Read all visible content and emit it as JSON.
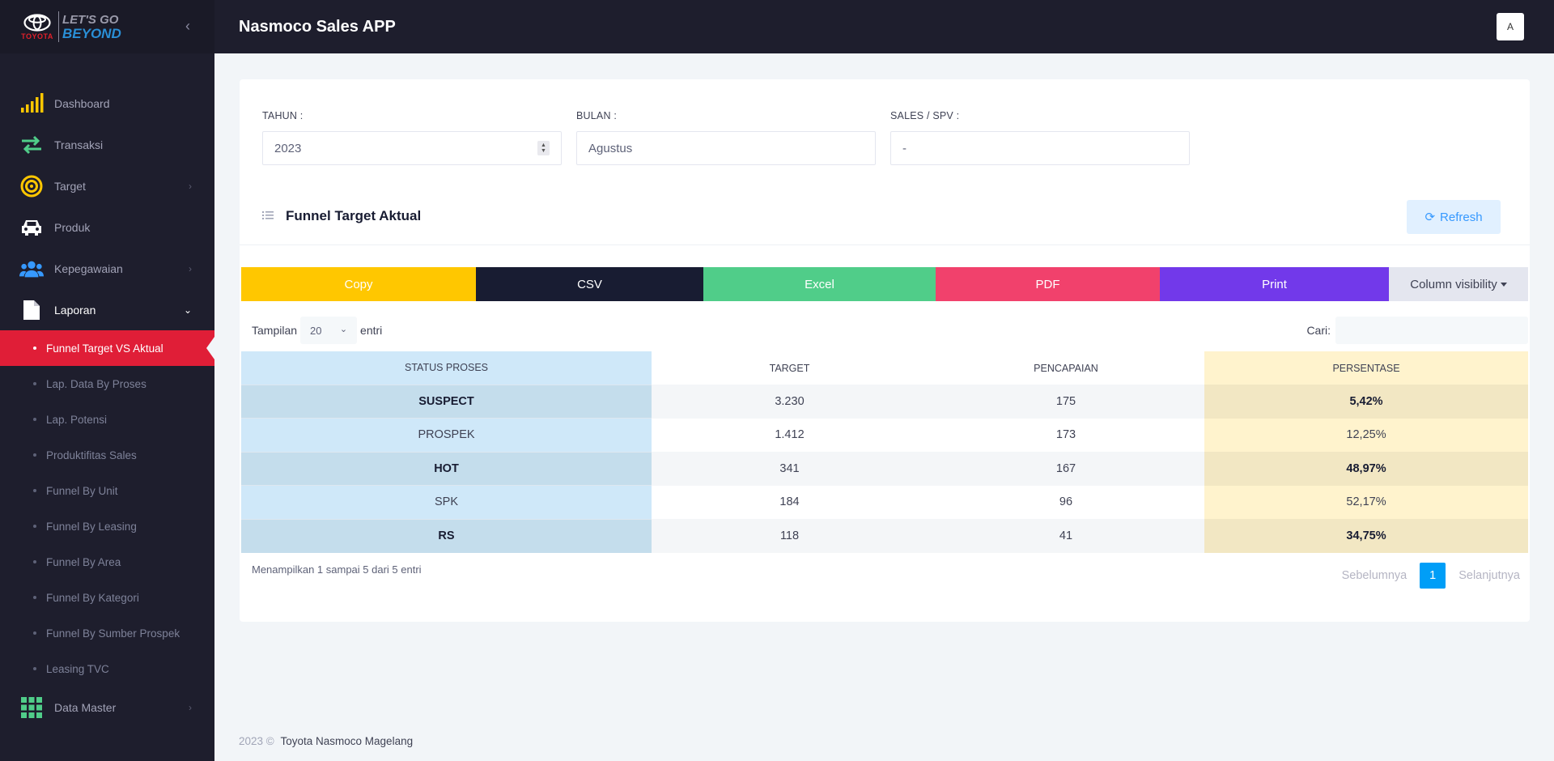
{
  "sidebar": {
    "brand": {
      "logo_text": "TOYOTA",
      "tagline_1": "LET'S GO",
      "tagline_2": "BEYOND"
    },
    "collapse_icon": "chevron-left-icon",
    "menu": [
      {
        "label": "Dashboard",
        "icon": "signal-bars-icon",
        "color": "#ffc700"
      },
      {
        "label": "Transaksi",
        "icon": "arrows-exchange-icon",
        "color": "#50cd89"
      },
      {
        "label": "Target",
        "icon": "target-icon",
        "color": "#ffc700"
      },
      {
        "label": "Produk",
        "icon": "car-icon",
        "color": "#ffffff"
      },
      {
        "label": "Kepegawaian",
        "icon": "users-icon",
        "color": "#3699ff"
      },
      {
        "label": "Laporan",
        "icon": "file-icon",
        "color": "#ffffff"
      },
      {
        "label": "Data Master",
        "icon": "grid-icon",
        "color": "#50cd89"
      }
    ],
    "submenu": [
      "Funnel Target VS Aktual",
      "Lap. Data By Proses",
      "Lap. Potensi",
      "Produktifitas Sales",
      "Funnel By Unit",
      "Funnel By Leasing",
      "Funnel By Area",
      "Funnel By Kategori",
      "Funnel By Sumber Prospek",
      "Leasing TVC"
    ]
  },
  "header": {
    "title": "Nasmoco Sales APP",
    "avatar": "A"
  },
  "filters": {
    "tahun": {
      "label": "TAHUN :",
      "value": "2023"
    },
    "bulan": {
      "label": "BULAN :",
      "value": "Agustus"
    },
    "sales": {
      "label": "SALES / SPV :",
      "value": "-"
    }
  },
  "section": {
    "title": "Funnel Target Aktual",
    "refresh": "Refresh"
  },
  "buttons": {
    "copy": "Copy",
    "csv": "CSV",
    "excel": "Excel",
    "pdf": "PDF",
    "print": "Print",
    "colvis": "Column visibility"
  },
  "table_controls": {
    "show_prefix": "Tampilan",
    "page_length": "20",
    "show_suffix": "entri",
    "search_label": "Cari:"
  },
  "table": {
    "headers": [
      "STATUS PROSES",
      "TARGET",
      "PENCAPAIAN",
      "PERSENTASE"
    ],
    "rows": [
      [
        "SUSPECT",
        "3.230",
        "175",
        "5,42%"
      ],
      [
        "PROSPEK",
        "1.412",
        "173",
        "12,25%"
      ],
      [
        "HOT",
        "341",
        "167",
        "48,97%"
      ],
      [
        "SPK",
        "184",
        "96",
        "52,17%"
      ],
      [
        "RS",
        "118",
        "41",
        "34,75%"
      ]
    ]
  },
  "pagination": {
    "info": "Menampilkan 1 sampai 5 dari 5 entri",
    "prev": "Sebelumnya",
    "page": "1",
    "next": "Selanjutnya"
  },
  "footer": {
    "year": "2023 ©",
    "company": "Toyota Nasmoco Magelang"
  }
}
